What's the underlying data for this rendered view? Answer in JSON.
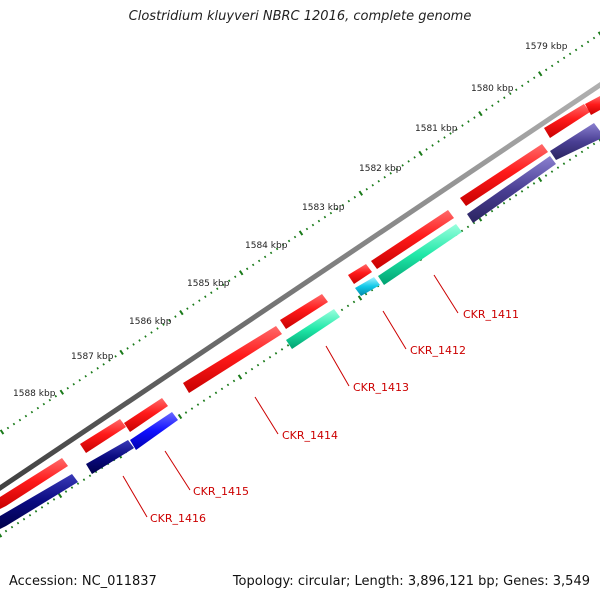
{
  "title": "Clostridium kluyveri NBRC 12016, complete genome",
  "footer": {
    "accession_label": "Accession:",
    "accession": "NC_011837",
    "topology_label": "Topology:",
    "topology": "circular",
    "length_label": "Length:",
    "length": "3,896,121 bp",
    "genes_label": "Genes:",
    "genes": "3,549"
  },
  "scale_ticks": [
    "1579 kbp",
    "1580 kbp",
    "1581 kbp",
    "1582 kbp",
    "1583 kbp",
    "1584 kbp",
    "1585 kbp",
    "1586 kbp",
    "1587 kbp",
    "1588 kbp"
  ],
  "gene_labels": [
    "CKR_1411",
    "CKR_1412",
    "CKR_1413",
    "CKR_1414",
    "CKR_1415",
    "CKR_1416"
  ],
  "colors": {
    "forward_cds": "#ff0000",
    "reverse_navy": "#000080",
    "reverse_slate": "#483d8b",
    "reverse_blue": "#0000ff",
    "reverse_teal": "#00e0a0",
    "reverse_cyan": "#00c8e0",
    "backbone": "#808080",
    "ticks": "#1a7a1a",
    "label": "#cc0000"
  }
}
